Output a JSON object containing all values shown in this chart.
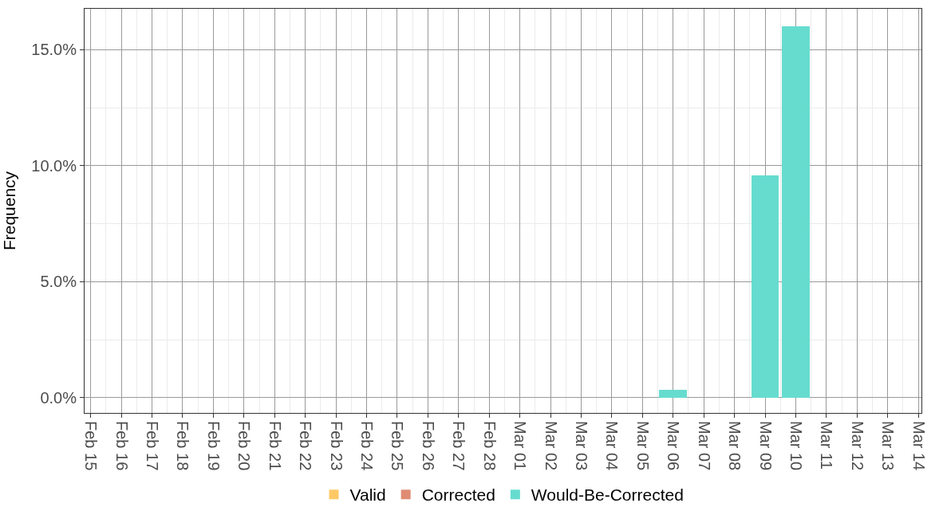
{
  "chart_data": {
    "type": "bar",
    "ylabel": "Frequency",
    "stacked": true,
    "categories": [
      "Feb 15",
      "Feb 16",
      "Feb 17",
      "Feb 18",
      "Feb 19",
      "Feb 20",
      "Feb 21",
      "Feb 22",
      "Feb 23",
      "Feb 24",
      "Feb 25",
      "Feb 26",
      "Feb 27",
      "Feb 28",
      "Mar 01",
      "Mar 02",
      "Mar 03",
      "Mar 04",
      "Mar 05",
      "Mar 06",
      "Mar 07",
      "Mar 08",
      "Mar 09",
      "Mar 10",
      "Mar 11",
      "Mar 12",
      "Mar 13",
      "Mar 14"
    ],
    "series": [
      {
        "name": "Valid",
        "color": "#fec865",
        "values": [
          null,
          null,
          null,
          null,
          null,
          null,
          null,
          null,
          null,
          null,
          null,
          null,
          null,
          null,
          null,
          null,
          null,
          null,
          null,
          null,
          null,
          null,
          null,
          null,
          null,
          null,
          null,
          null
        ]
      },
      {
        "name": "Corrected",
        "color": "#e08c74",
        "values": [
          null,
          null,
          null,
          null,
          null,
          null,
          null,
          null,
          null,
          null,
          null,
          null,
          null,
          null,
          null,
          null,
          null,
          null,
          null,
          null,
          null,
          null,
          null,
          null,
          null,
          null,
          null,
          null
        ]
      },
      {
        "name": "Would-Be-Corrected",
        "color": "#66dccf",
        "values": [
          null,
          null,
          null,
          null,
          null,
          null,
          null,
          null,
          null,
          null,
          null,
          null,
          null,
          null,
          null,
          null,
          null,
          null,
          null,
          0.35,
          null,
          null,
          9.6,
          16.0,
          null,
          null,
          null,
          null
        ]
      }
    ],
    "ylim": [
      -0.66,
      16.77
    ],
    "yticks": [
      {
        "value": 0,
        "label": "0.0%"
      },
      {
        "value": 5,
        "label": "5.0%"
      },
      {
        "value": 10,
        "label": "10.0%"
      },
      {
        "value": 15,
        "label": "15.0%"
      }
    ],
    "grid": true,
    "legend": "bottom"
  }
}
